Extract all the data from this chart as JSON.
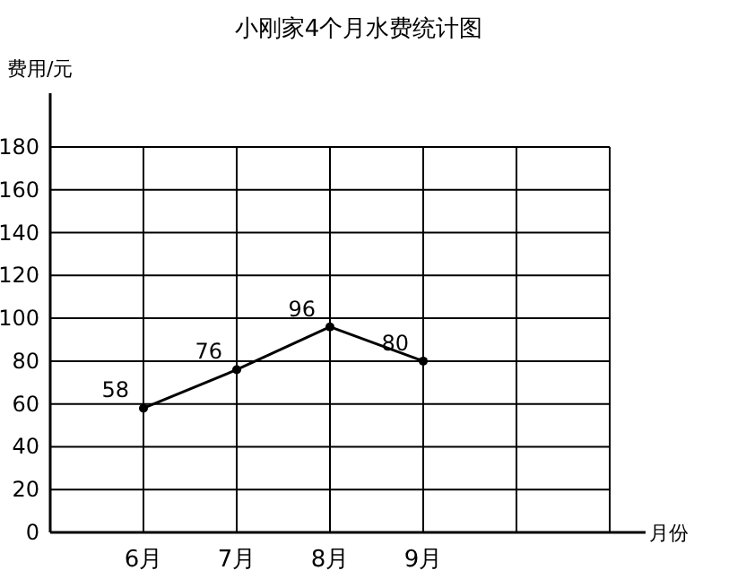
{
  "chart_data": {
    "type": "line",
    "title": "小刚家4个月水费统计图",
    "ylabel": "费用/元",
    "xlabel": "月份",
    "categories": [
      "6月",
      "7月",
      "8月",
      "9月",
      null,
      null
    ],
    "series": [
      {
        "color": "#000000",
        "values": [
          58,
          76,
          96,
          80,
          null,
          null
        ]
      }
    ],
    "ylim": [
      0,
      180
    ],
    "yticks": [
      0,
      20,
      40,
      60,
      80,
      100,
      120,
      140,
      160,
      180
    ],
    "grid": true,
    "marker": "circle",
    "data_labels": true
  }
}
